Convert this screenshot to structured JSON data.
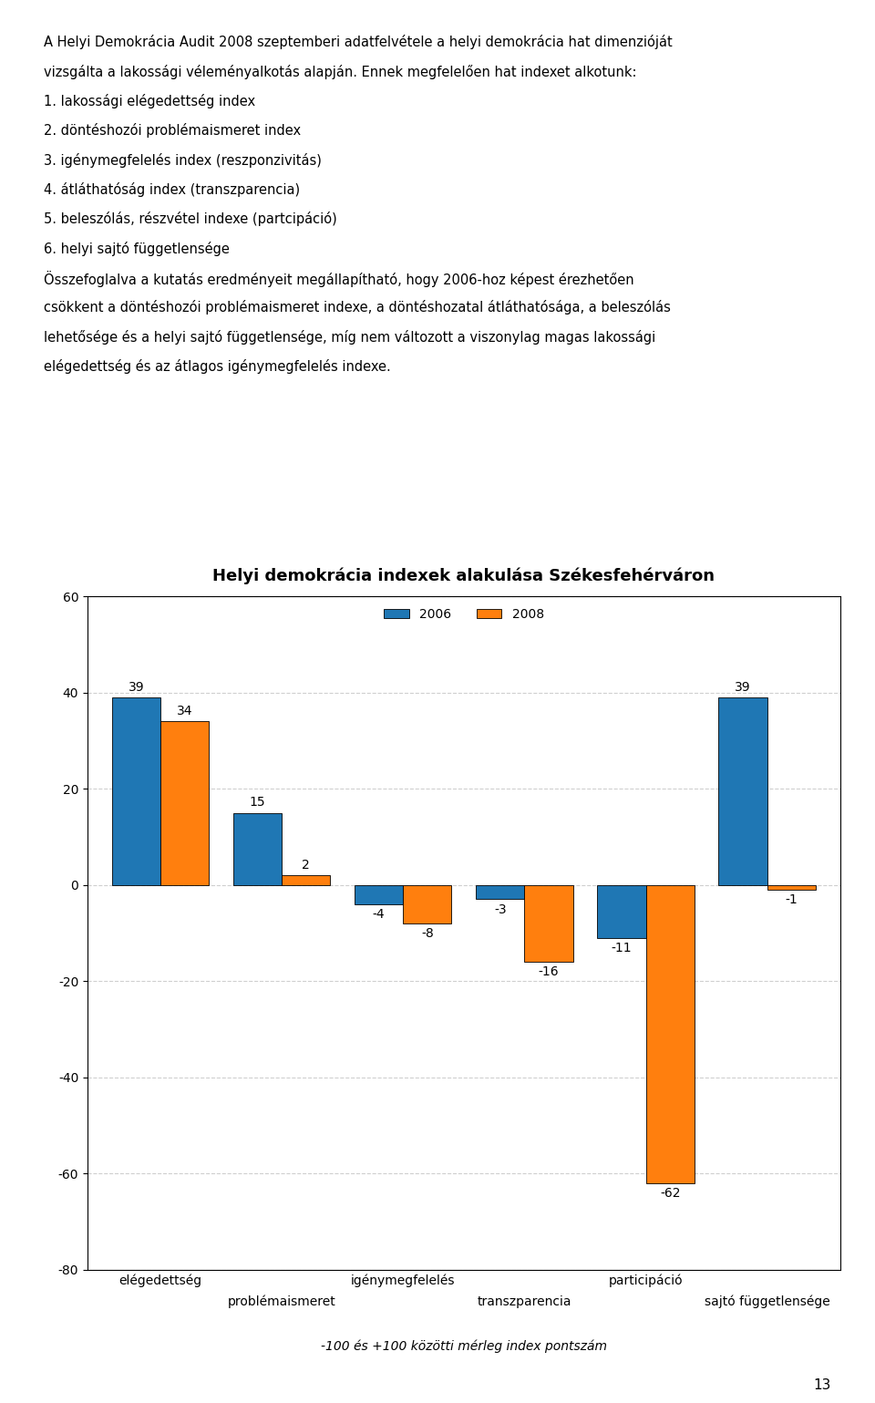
{
  "chart_data": {
    "type": "bar",
    "title": "Helyi demokrácia indexek alakulása Székesfehérváron",
    "subtitle": "-100 és +100 közötti mérleg index pontszám",
    "categories": [
      "elégedettség",
      "problémaismeret",
      "igénymegfelelés",
      "transzparencia",
      "participáció",
      "sajtó függetlensége"
    ],
    "series": [
      {
        "name": "2006",
        "values": [
          39,
          15,
          -4,
          -3,
          -11,
          39
        ]
      },
      {
        "name": "2008",
        "values": [
          34,
          2,
          -8,
          -16,
          -62,
          -1
        ]
      }
    ],
    "ylim": [
      -80,
      60
    ],
    "yticks": [
      -80,
      -60,
      -40,
      -20,
      0,
      20,
      40,
      60
    ],
    "grid": true,
    "legend": "upper center",
    "data_labels": true,
    "annotations": [
      "A Helyi Demokrácia Audit 2008 szeptemberi adatfelvétele a helyi demokrácia hat dimenzióját",
      "vizsgálta a lakossági véleményalkotás alapján. Ennek megfelelően hat indexet alkotunk:",
      "1. lakossági elégedettség index",
      "2. döntéshozói problémaismeret index",
      "3. igénymegfelelés index (reszponzivitás)",
      "4. átláthatóság index (transzparencia)",
      "5. beleszólás, részvétel indexe (partcipáció)",
      "6. helyi sajtó függetlensége",
      "Összefoglalva a kutatás eredményeit megállapítható, hogy 2006-hoz képest érezhetően",
      "csökkent a döntéshozói problémaismeret indexe, a döntéshozatal átláthatósága, a beleszólás",
      "lehetősége és a helyi sajtó függetlensége, míg nem változott a viszonylag magas lakossági",
      "elégedettség és az átlagos igénymegfelelés indexe.",
      "13"
    ]
  }
}
